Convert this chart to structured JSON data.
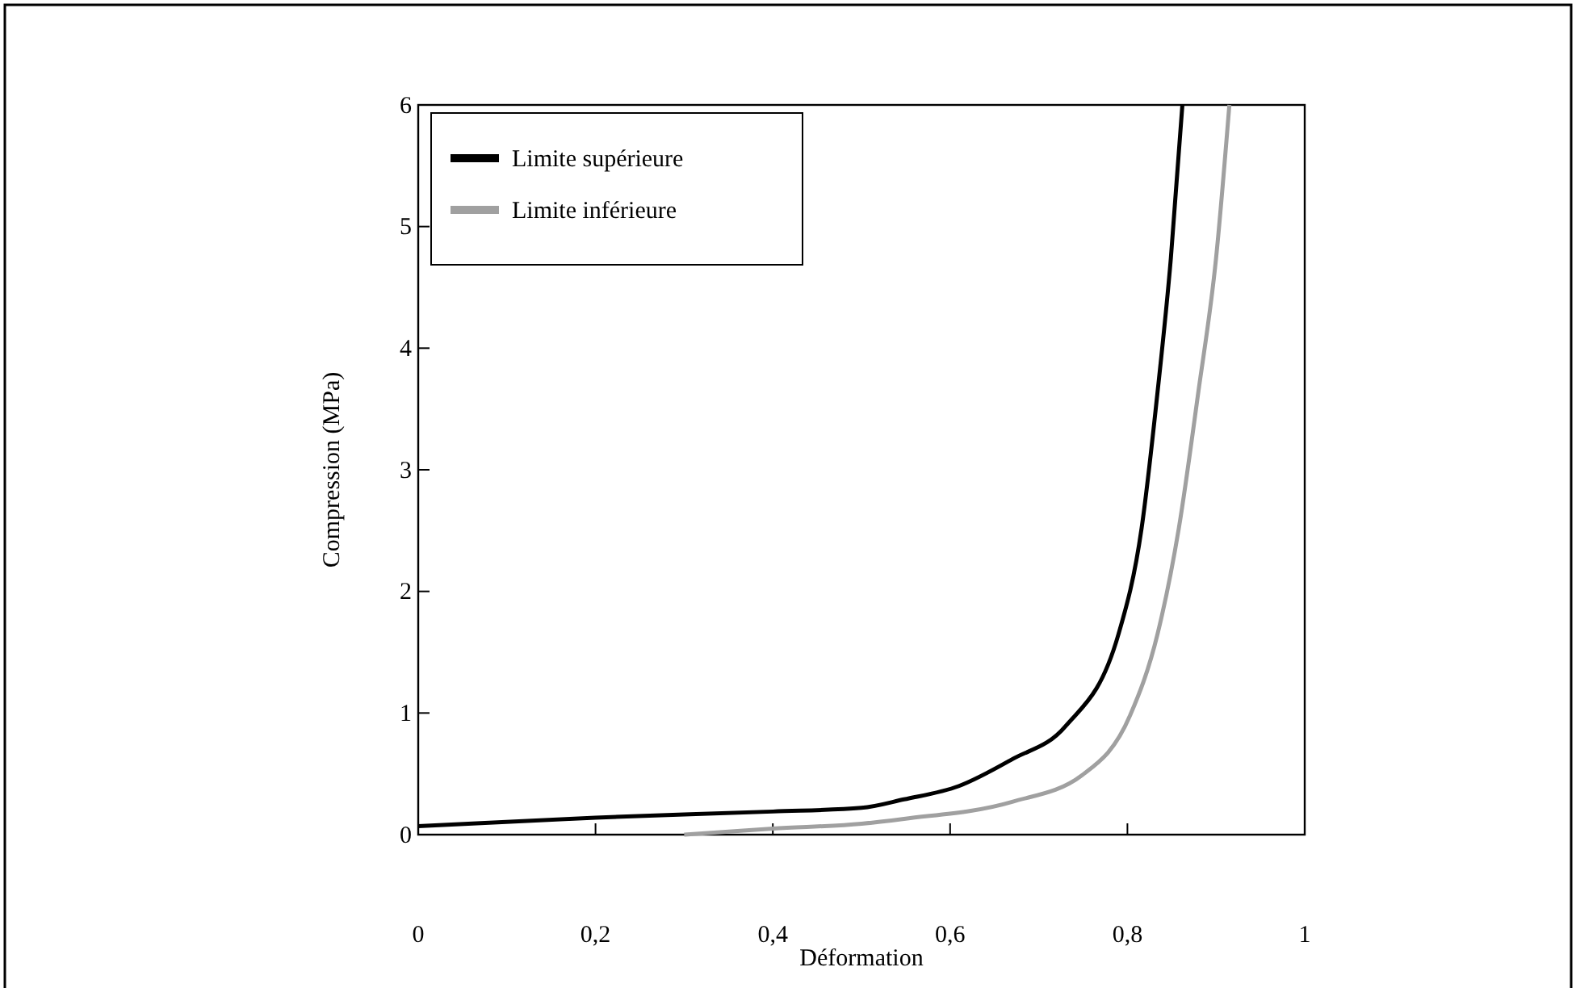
{
  "chart_data": {
    "type": "line",
    "xlabel": "Déformation",
    "ylabel": "Compression (MPa)",
    "xlim": [
      0,
      1
    ],
    "ylim": [
      0,
      6
    ],
    "xticks": [
      {
        "value": 0,
        "label": "0"
      },
      {
        "value": 0.2,
        "label": "0,2"
      },
      {
        "value": 0.4,
        "label": "0,4"
      },
      {
        "value": 0.6,
        "label": "0,6"
      },
      {
        "value": 0.8,
        "label": "0,8"
      },
      {
        "value": 1,
        "label": "1"
      }
    ],
    "yticks": [
      0,
      1,
      2,
      3,
      4,
      5,
      6
    ],
    "grid": false,
    "legend": "top left",
    "series": [
      {
        "name": "Limite supérieure",
        "color": "#000000",
        "x": [
          0,
          0.2,
          0.4,
          0.5,
          0.548,
          0.61,
          0.67,
          0.73,
          0.79,
          0.816,
          0.834,
          0.849,
          0.862
        ],
        "values": [
          0.07,
          0.14,
          0.19,
          0.22,
          0.29,
          0.4,
          0.62,
          0.89,
          1.65,
          2.52,
          3.64,
          4.74,
          6
        ]
      },
      {
        "name": "Limite inférieure",
        "color": "#a0a0a0",
        "x": [
          0.3,
          0.4,
          0.5,
          0.548,
          0.67,
          0.749,
          0.803,
          0.834,
          0.858,
          0.88,
          0.9,
          0.915
        ],
        "values": [
          0,
          0.05,
          0.09,
          0.13,
          0.27,
          0.49,
          0.98,
          1.65,
          2.52,
          3.64,
          4.74,
          6
        ]
      }
    ]
  }
}
